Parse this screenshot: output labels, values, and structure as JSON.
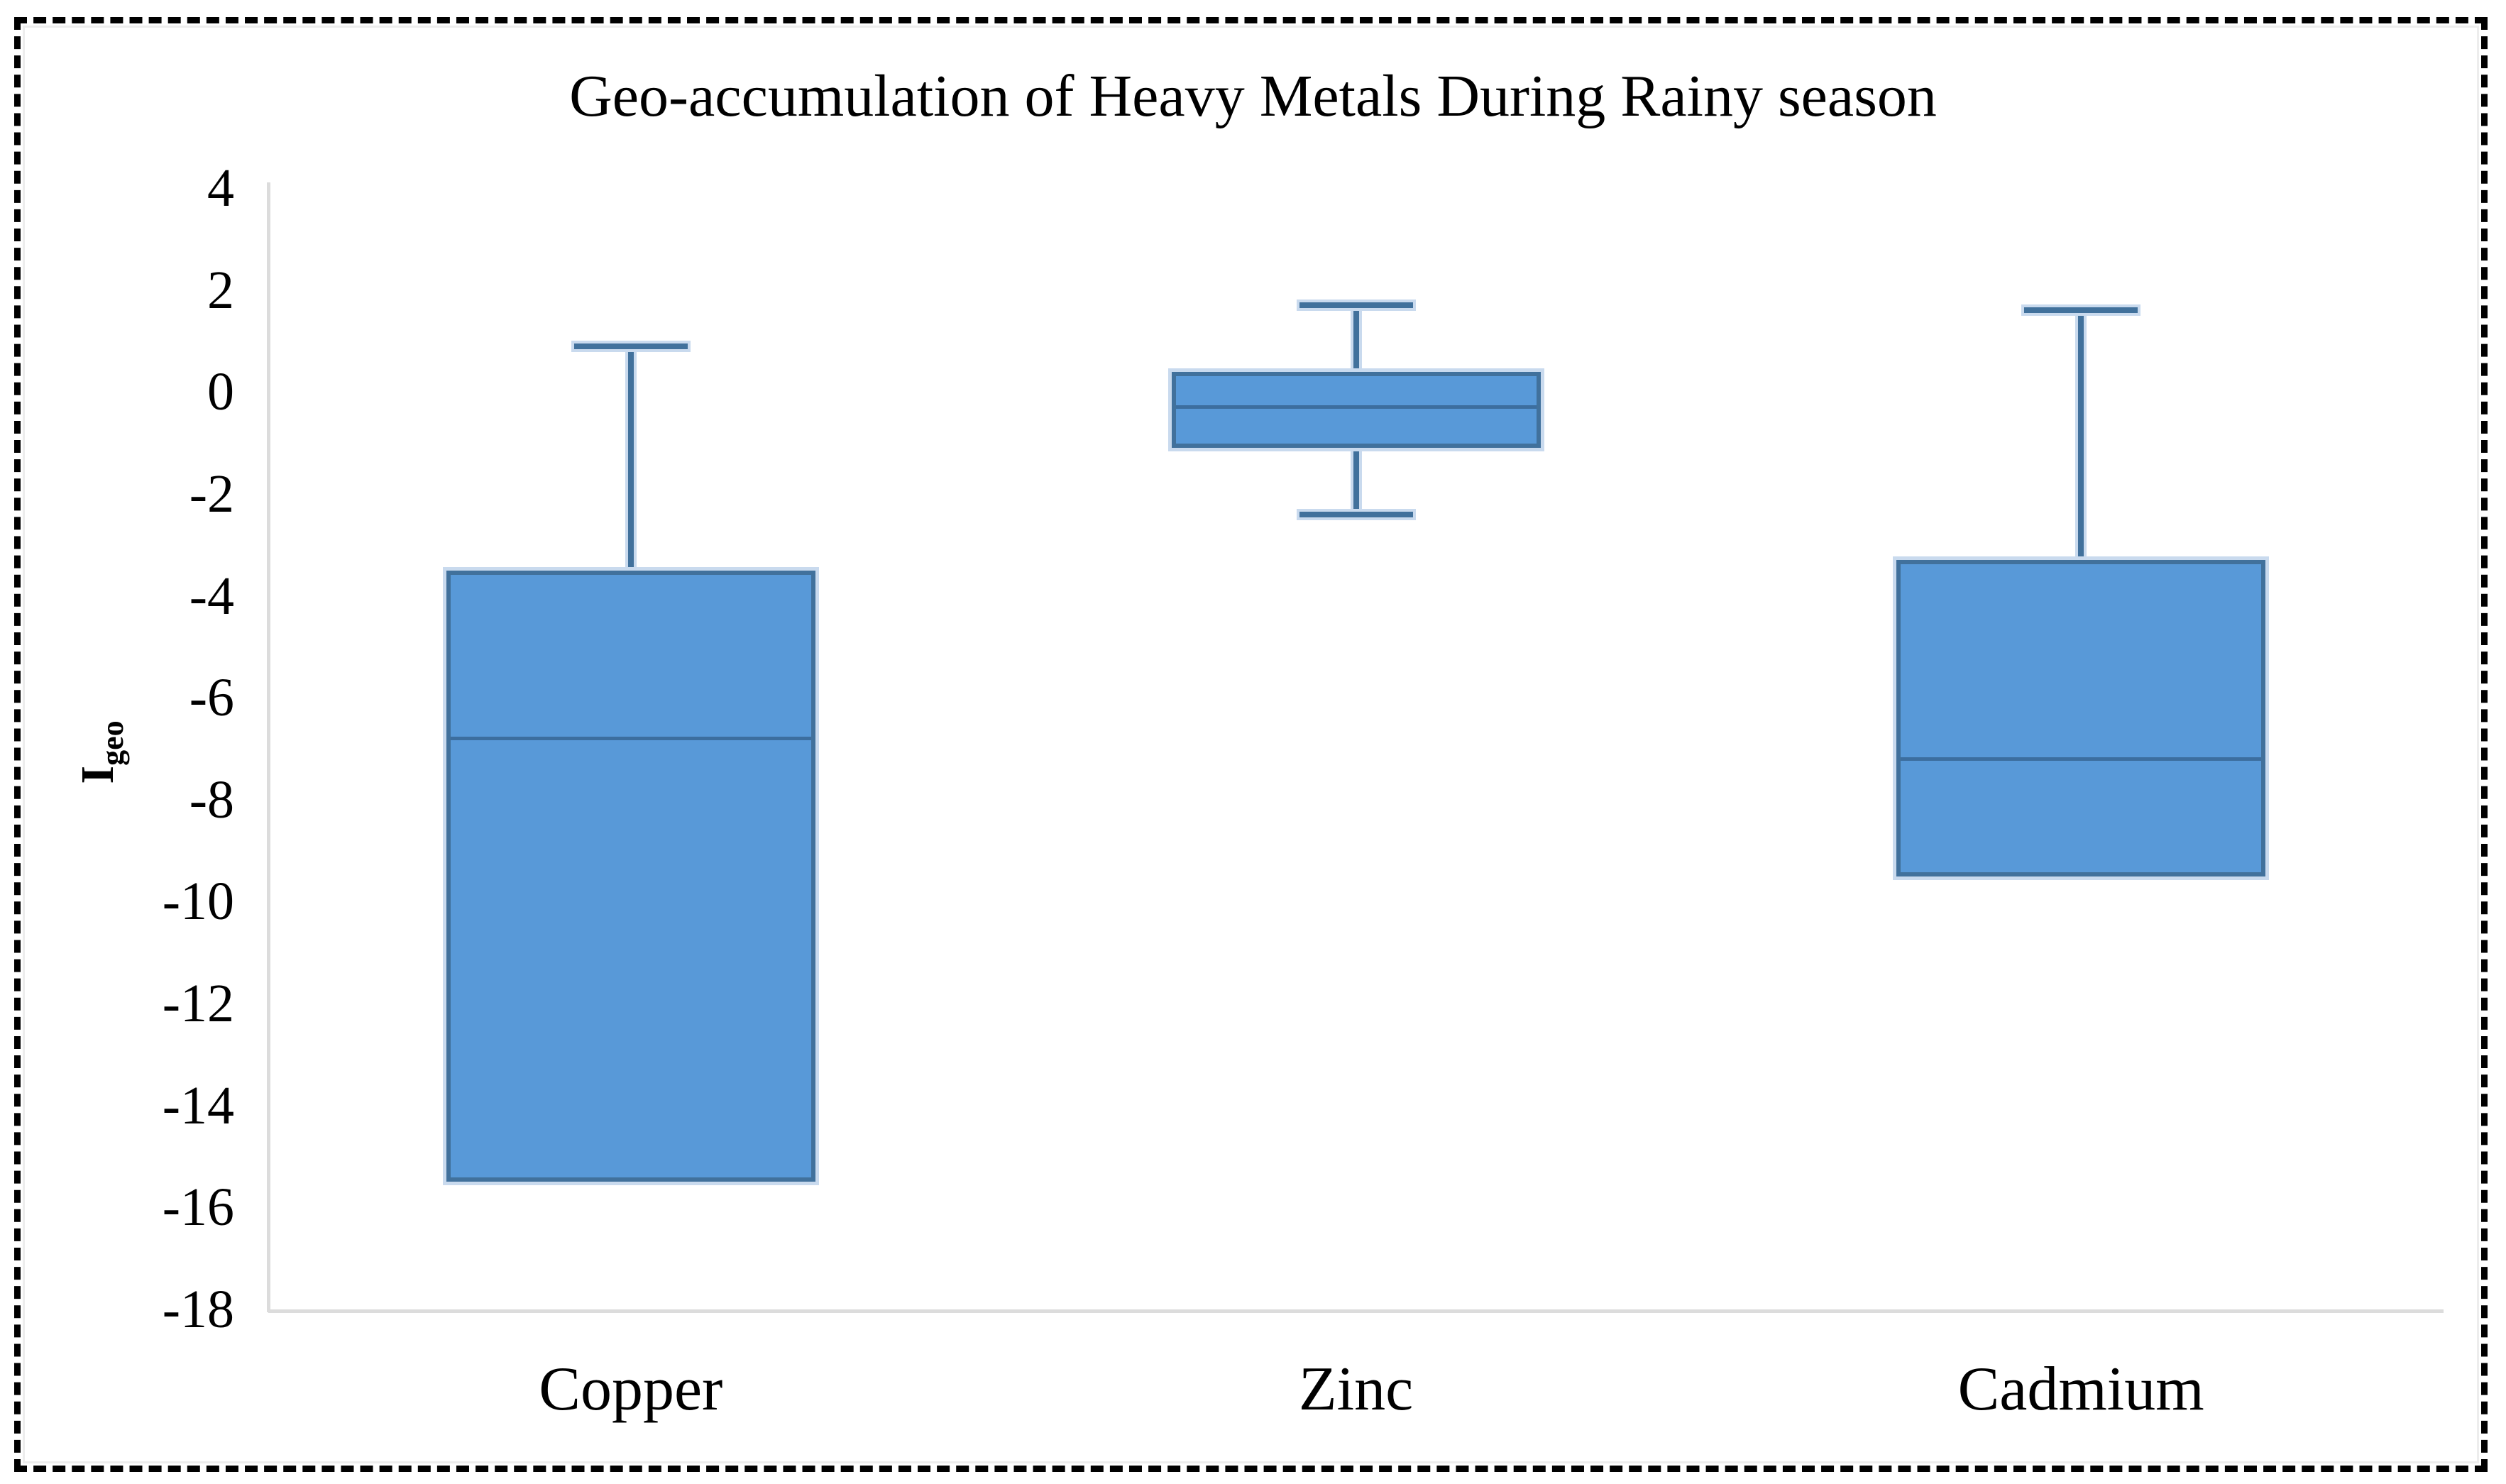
{
  "chart_data": {
    "type": "boxplot",
    "title": "Geo-accumulation of Heavy Metals During Rainy season",
    "y_axis": {
      "label_main": "I",
      "label_sub": "geo",
      "ticks": [
        4,
        2,
        0,
        -2,
        -4,
        -6,
        -8,
        -10,
        -12,
        -14,
        -16,
        -18
      ],
      "range": [
        -18,
        4
      ],
      "grid": false
    },
    "categories": [
      "Copper",
      "Zinc",
      "Cadmium"
    ],
    "series": [
      {
        "name": "Copper",
        "min": -15.5,
        "q1": -15.5,
        "median": -6.8,
        "q3": -3.5,
        "max": 0.9
      },
      {
        "name": "Zinc",
        "min": -2.4,
        "q1": -1.1,
        "median": -0.3,
        "q3": 0.4,
        "max": 1.7
      },
      {
        "name": "Cadmium",
        "min": -9.5,
        "q1": -9.5,
        "median": -7.2,
        "q3": -3.3,
        "max": 1.6
      }
    ],
    "legend_position": "none",
    "colors": {
      "box_fill": "#5899D8",
      "box_stroke": "#41719C",
      "median_line": "#3C6E9F",
      "whisker": "#41719C",
      "halo": "#C9DAEE",
      "axis_line": "#DCDCDC",
      "text": "#000000",
      "frame": "#000000",
      "background": "#FFFFFF"
    }
  }
}
